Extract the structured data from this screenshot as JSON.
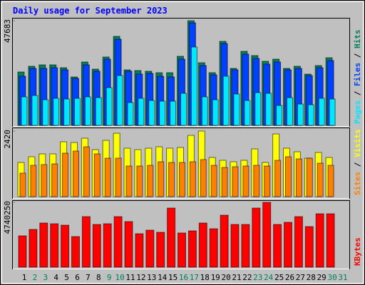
{
  "title": "Daily usage for September 2023",
  "separator": " / ",
  "categories": [
    "1",
    "2",
    "3",
    "4",
    "5",
    "6",
    "7",
    "8",
    "9",
    "10",
    "11",
    "12",
    "13",
    "14",
    "15",
    "16",
    "17",
    "18",
    "19",
    "20",
    "21",
    "22",
    "23",
    "24",
    "25",
    "26",
    "27",
    "28",
    "29",
    "30",
    "31"
  ],
  "category_colors": [
    "#000000",
    "#00805c",
    "#00805c",
    "#000000",
    "#000000",
    "#000000",
    "#000000",
    "#000000",
    "#00805c",
    "#00805c",
    "#000000",
    "#000000",
    "#000000",
    "#000000",
    "#000000",
    "#00805c",
    "#00805c",
    "#000000",
    "#000000",
    "#000000",
    "#000000",
    "#000000",
    "#00805c",
    "#00805c",
    "#000000",
    "#000000",
    "#000000",
    "#000000",
    "#000000",
    "#00805c",
    "#00805c"
  ],
  "chart_data": [
    {
      "type": "bar",
      "ylim": [
        0,
        47683
      ],
      "yticks": [
        47683
      ],
      "series": [
        {
          "name": "Pages",
          "color": "#00e8ff",
          "values": [
            12975,
            13624,
            11677,
            12326,
            12002,
            12326,
            12975,
            12651,
            17192,
            22707,
            10380,
            12326,
            11353,
            11029,
            11029,
            14597,
            35681,
            12975,
            11677,
            22381,
            14272,
            11353,
            14921,
            14597,
            9082,
            12651,
            9731,
            9407,
            12326,
            12002,
            null
          ]
        },
        {
          "name": "Files",
          "color": "#0040ff",
          "values": [
            22381,
            25950,
            25950,
            26276,
            25301,
            21409,
            27572,
            24652,
            30167,
            39250,
            24652,
            23355,
            23680,
            22381,
            22058,
            30167,
            46710,
            27248,
            23031,
            37303,
            25301,
            32437,
            30492,
            27897,
            28870,
            25301,
            25950,
            22707,
            26276,
            29518,
            null
          ]
        },
        {
          "name": "Hits",
          "color": "#00805c",
          "values": [
            24330,
            26925,
            27574,
            27574,
            26276,
            22058,
            28870,
            25626,
            31140,
            40548,
            25301,
            24977,
            24652,
            24004,
            24004,
            31465,
            47683,
            28545,
            24004,
            38276,
            25950,
            33735,
            31789,
            29194,
            30167,
            25950,
            26925,
            23355,
            27248,
            30815,
            null
          ]
        }
      ]
    },
    {
      "type": "bar",
      "ylim": [
        0,
        2420
      ],
      "yticks": [
        2420
      ],
      "series": [
        {
          "name": "Sites",
          "color": "#ff8000",
          "values": [
            868,
            1157,
            1184,
            1210,
            1605,
            1683,
            1841,
            1578,
            1420,
            1420,
            1131,
            1131,
            1157,
            1289,
            1262,
            1262,
            1289,
            1368,
            1157,
            1078,
            1105,
            1131,
            1157,
            1131,
            1341,
            1473,
            1394,
            1420,
            1236,
            1157,
            null
          ]
        },
        {
          "name": "Visits",
          "color": "#ffff00",
          "values": [
            1263,
            1473,
            1578,
            1578,
            2025,
            1999,
            2157,
            1736,
            2078,
            2341,
            1788,
            1736,
            1788,
            1841,
            1788,
            1815,
            2262,
            2420,
            1447,
            1341,
            1289,
            1341,
            1762,
            1263,
            2315,
            1788,
            1657,
            1420,
            1631,
            1447,
            null
          ]
        }
      ]
    },
    {
      "type": "bar",
      "ylim": [
        0,
        4740250
      ],
      "yticks": [
        4740250
      ],
      "series": [
        {
          "name": "KBytes",
          "color": "#ff0000",
          "values": [
            2291960,
            2760770,
            3229580,
            3177490,
            3073310,
            2239870,
            3698390,
            3125400,
            3177490,
            3698390,
            3333760,
            2448230,
            2708680,
            2552410,
            4323470,
            2500320,
            2656590,
            3229580,
            2812860,
            3802570,
            3125400,
            3125400,
            4323470,
            4740250,
            3125400,
            3281670,
            3698390,
            2969130,
            3906750,
            3906750,
            null
          ]
        }
      ]
    }
  ]
}
